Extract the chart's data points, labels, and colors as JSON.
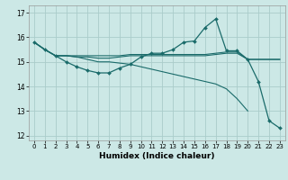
{
  "xlabel": "Humidex (Indice chaleur)",
  "background_color": "#cce8e6",
  "grid_color": "#aaccca",
  "line_color": "#1a6b6a",
  "xlim": [
    -0.5,
    23.5
  ],
  "ylim": [
    11.8,
    17.3
  ],
  "yticks": [
    12,
    13,
    14,
    15,
    16,
    17
  ],
  "xticks": [
    0,
    1,
    2,
    3,
    4,
    5,
    6,
    7,
    8,
    9,
    10,
    11,
    12,
    13,
    14,
    15,
    16,
    17,
    18,
    19,
    20,
    21,
    22,
    23
  ],
  "line1_x": [
    0,
    1,
    2,
    3,
    4,
    5,
    6,
    7,
    8,
    9,
    10,
    11,
    12,
    13,
    14,
    15,
    16,
    17,
    18,
    19,
    20,
    21,
    22,
    23
  ],
  "line1_y": [
    15.8,
    15.5,
    15.25,
    15.0,
    14.8,
    14.65,
    14.55,
    14.55,
    14.75,
    14.9,
    15.2,
    15.35,
    15.35,
    15.5,
    15.8,
    15.85,
    16.4,
    16.75,
    15.45,
    15.45,
    15.1,
    14.2,
    12.6,
    12.3
  ],
  "line2_x": [
    0,
    1,
    2,
    3,
    4,
    5,
    6,
    7,
    8,
    9,
    10,
    11,
    12,
    13,
    14,
    15,
    16,
    17,
    18,
    19,
    20,
    21,
    22,
    23
  ],
  "line2_y": [
    15.8,
    15.5,
    15.25,
    15.25,
    15.25,
    15.25,
    15.25,
    15.25,
    15.25,
    15.3,
    15.3,
    15.3,
    15.3,
    15.3,
    15.3,
    15.3,
    15.3,
    15.35,
    15.4,
    15.4,
    15.1,
    15.1,
    15.1,
    15.1
  ],
  "line3_x": [
    0,
    1,
    2,
    3,
    4,
    5,
    6,
    7,
    8,
    9,
    10,
    11,
    12,
    13,
    14,
    15,
    16,
    17,
    18,
    19,
    20,
    21,
    22,
    23
  ],
  "line3_y": [
    15.8,
    15.5,
    15.25,
    15.25,
    15.2,
    15.2,
    15.15,
    15.15,
    15.2,
    15.25,
    15.25,
    15.25,
    15.25,
    15.25,
    15.25,
    15.25,
    15.25,
    15.3,
    15.35,
    15.35,
    15.1,
    15.1,
    15.1,
    15.1
  ],
  "line4_x": [
    0,
    1,
    2,
    3,
    4,
    5,
    6,
    7,
    8,
    9,
    10,
    11,
    12,
    13,
    14,
    15,
    16,
    17,
    18,
    19,
    20
  ],
  "line4_y": [
    15.8,
    15.5,
    15.25,
    15.25,
    15.2,
    15.1,
    15.0,
    15.0,
    14.95,
    14.9,
    14.8,
    14.7,
    14.6,
    14.5,
    14.4,
    14.3,
    14.2,
    14.1,
    13.9,
    13.5,
    13.0
  ]
}
